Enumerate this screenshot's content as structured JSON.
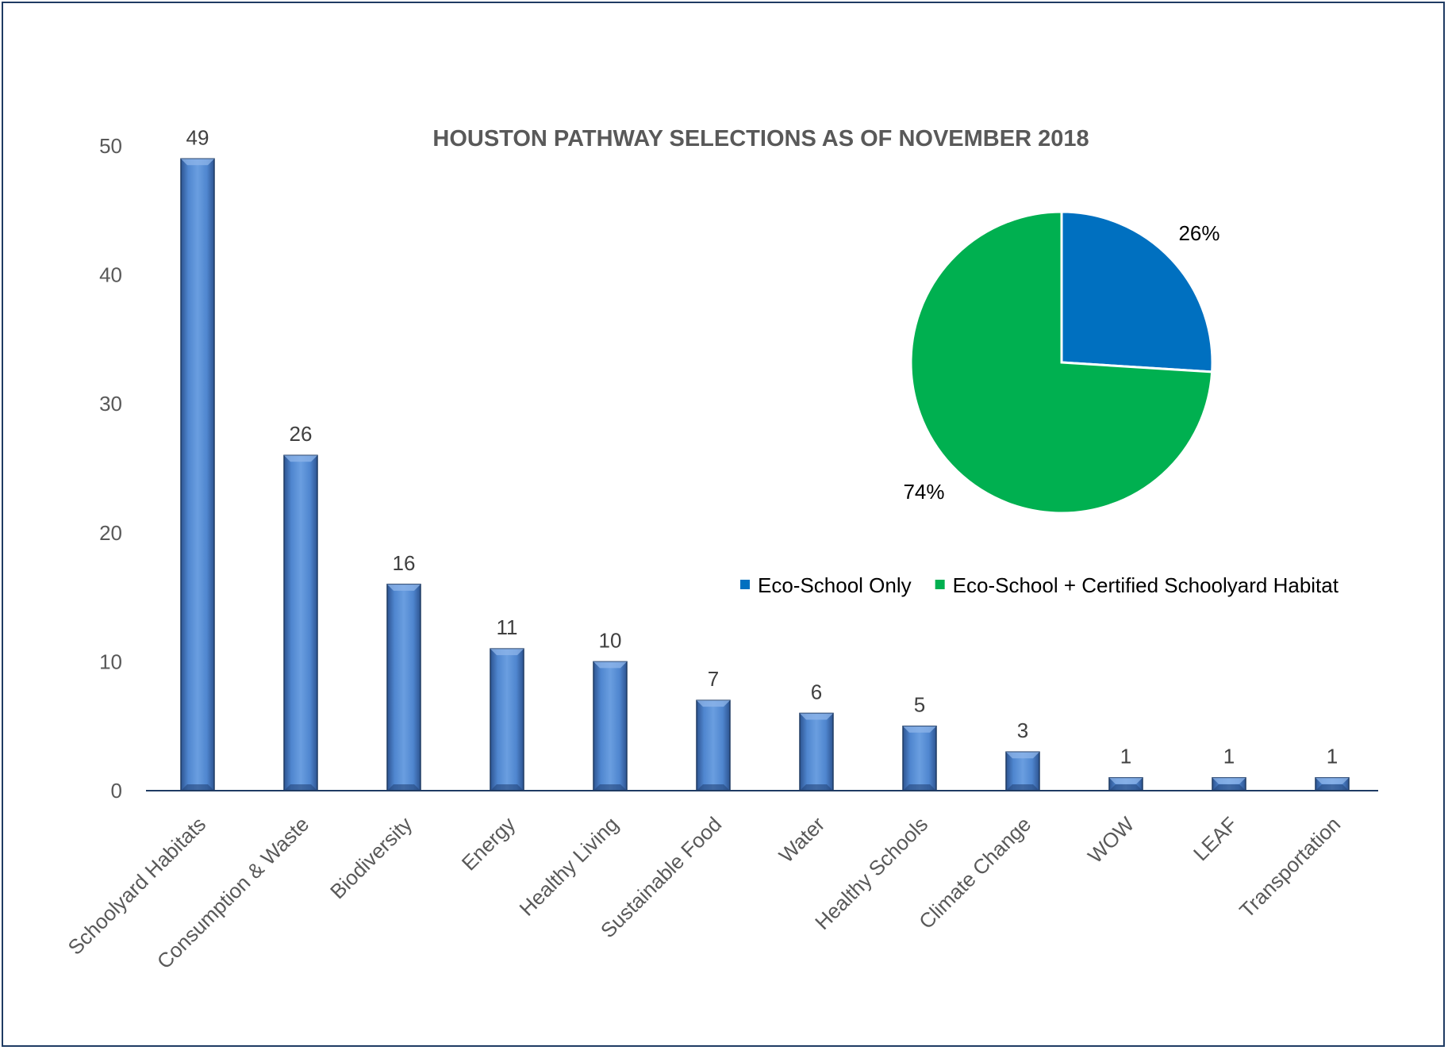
{
  "chart_data": [
    {
      "type": "bar",
      "title": "HOUSTON PATHWAY SELECTIONS AS OF NOVEMBER 2018",
      "categories": [
        "Schoolyard Habitats",
        "Consumption & Waste",
        "Biodiversity",
        "Energy",
        "Healthy Living",
        "Sustainable Food",
        "Water",
        "Healthy Schools",
        "Climate Change",
        "WOW",
        "LEAF",
        "Transportation"
      ],
      "values": [
        49,
        26,
        16,
        11,
        10,
        7,
        6,
        5,
        3,
        1,
        1,
        1
      ],
      "y_ticks": [
        "0",
        "10",
        "20",
        "30",
        "40",
        "50"
      ],
      "ylim": [
        0,
        50
      ],
      "grid": false,
      "bar_color": "#4a7cc2",
      "data_labels": true
    },
    {
      "type": "pie",
      "slices": [
        {
          "name": "Eco-School Only",
          "value": 26,
          "label": "26%",
          "color": "#0070c0"
        },
        {
          "name": "Eco-School + Certified Schoolyard Habitat",
          "value": 74,
          "label": "74%",
          "color": "#00b050"
        }
      ],
      "legend_position": "bottom"
    }
  ]
}
